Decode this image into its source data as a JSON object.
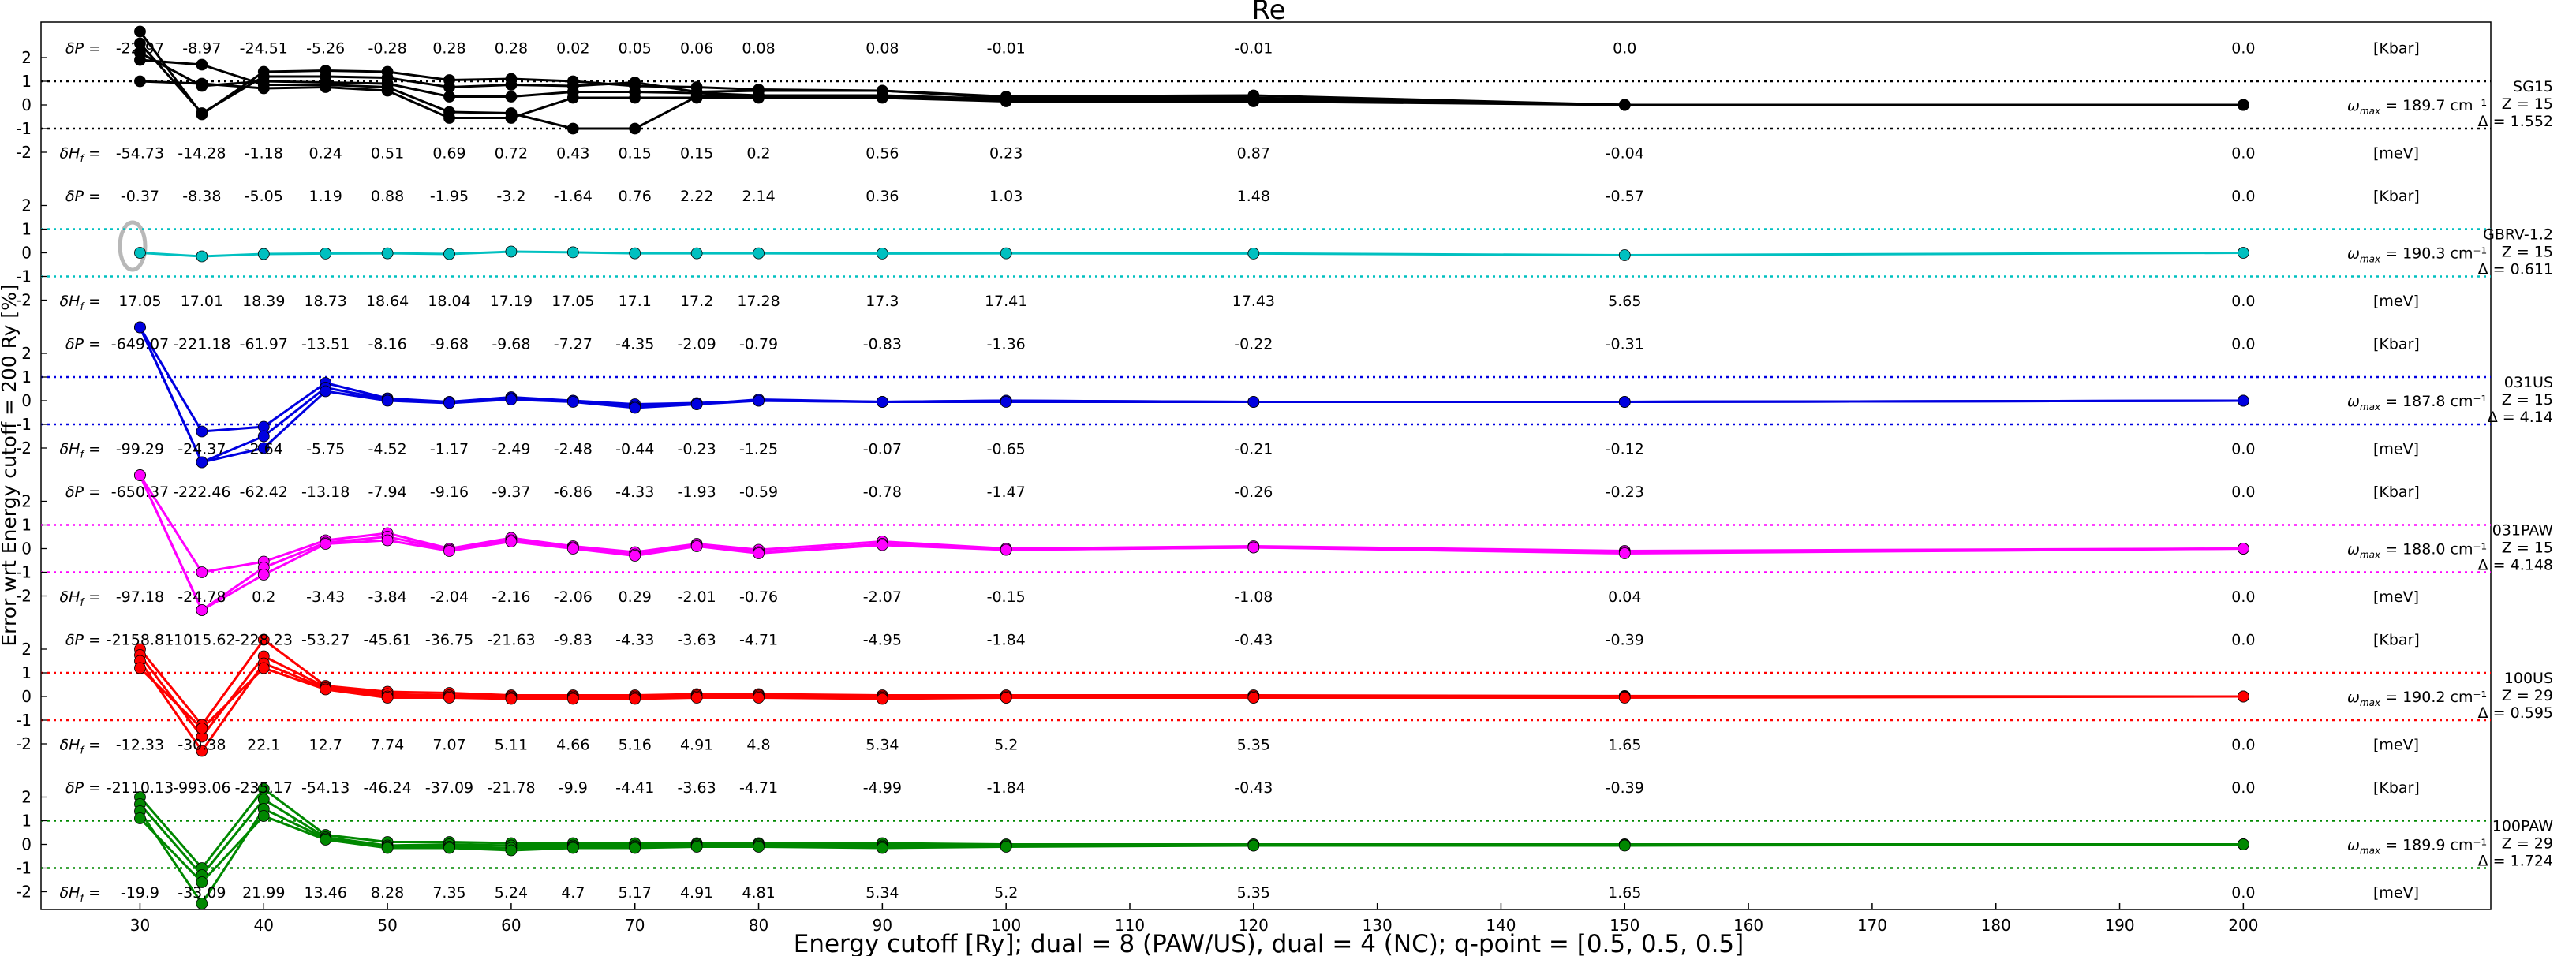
{
  "chart_data": {
    "type": "line",
    "title": "Re",
    "xlabel": "Energy cutoff [Ry]; dual = 8 (PAW/US), dual = 4 (NC); q-point = [0.5, 0.5, 0.5]",
    "ylabel": "Error wrt Energy cutoff = 200 Ry [%]",
    "xlim": [
      22,
      220
    ],
    "xticks": [
      30,
      40,
      50,
      60,
      70,
      80,
      90,
      100,
      110,
      120,
      130,
      140,
      150,
      160,
      170,
      180,
      190,
      200
    ],
    "x": [
      30,
      35,
      40,
      45,
      50,
      55,
      60,
      65,
      70,
      75,
      80,
      90,
      100,
      120,
      150,
      200
    ],
    "panel_ylim": [
      -2.6,
      3.1
    ],
    "panel_yticks": [
      2,
      1,
      0,
      -1,
      -2
    ],
    "labels": {
      "dP": "δP =",
      "dH": "δH",
      "dH_sub": "f",
      "dH_eq": " =",
      "kbar": "[Kbar]",
      "mev": "[meV]",
      "omega": "ω",
      "omega_sub": "max"
    },
    "panels": [
      {
        "name": "SG15",
        "z": "Z = 15",
        "delta": "Δ = 1.552",
        "color": "#000000",
        "omega_value": " = 189.7 cm⁻¹",
        "dP": [
          "-22.97",
          "-8.97",
          "-24.51",
          "-5.26",
          "-0.28",
          "0.28",
          "0.28",
          "0.02",
          "0.05",
          "0.06",
          "0.08",
          "0.08",
          "-0.01",
          "-0.01",
          "0.0",
          "0.0"
        ],
        "dH": [
          "-54.73",
          "-14.28",
          "-1.18",
          "0.24",
          "0.51",
          "0.69",
          "0.72",
          "0.43",
          "0.15",
          "0.15",
          "0.2",
          "0.56",
          "0.23",
          "0.87",
          "-0.04",
          "0.0"
        ],
        "series": [
          {
            "values": [
              3.4,
              -0.4,
              1.4,
              1.45,
              1.4,
              1.05,
              1.1,
              1.0,
              0.8,
              0.75,
              0.65,
              0.6,
              0.35,
              0.4,
              0.0,
              0.0
            ]
          },
          {
            "values": [
              2.6,
              -0.35,
              1.2,
              1.2,
              1.15,
              0.75,
              0.85,
              0.8,
              0.95,
              0.55,
              0.6,
              0.6,
              0.3,
              0.3,
              0.0,
              0.0
            ]
          },
          {
            "values": [
              2.2,
              0.8,
              1.0,
              0.95,
              0.9,
              0.35,
              0.35,
              0.55,
              0.55,
              0.5,
              0.4,
              0.4,
              0.25,
              0.25,
              0.0,
              0.0
            ]
          },
          {
            "values": [
              1.9,
              1.7,
              0.85,
              0.85,
              0.75,
              -0.3,
              -0.35,
              -1.0,
              -1.0,
              0.35,
              0.35,
              0.35,
              0.2,
              0.2,
              0.0,
              0.0
            ]
          },
          {
            "values": [
              1.0,
              0.9,
              0.7,
              0.75,
              0.6,
              -0.55,
              -0.55,
              0.3,
              0.3,
              0.3,
              0.3,
              0.3,
              0.15,
              0.15,
              0.0,
              0.0
            ]
          }
        ]
      },
      {
        "name": "GBRV-1.2",
        "z": "Z = 15",
        "delta": "Δ = 0.611",
        "color": "#00c0c0",
        "omega_value": " = 190.3 cm⁻¹",
        "dP": [
          "-0.37",
          "-8.38",
          "-5.05",
          "1.19",
          "0.88",
          "-1.95",
          "-3.2",
          "-1.64",
          "0.76",
          "2.22",
          "2.14",
          "0.36",
          "1.03",
          "1.48",
          "-0.57",
          "0.0"
        ],
        "dH": [
          "17.05",
          "17.01",
          "18.39",
          "18.73",
          "18.64",
          "18.04",
          "17.19",
          "17.05",
          "17.1",
          "17.2",
          "17.28",
          "17.3",
          "17.41",
          "17.43",
          "5.65",
          "0.0"
        ],
        "series": [
          {
            "values": [
              0.0,
              -0.15,
              -0.05,
              -0.03,
              -0.02,
              -0.05,
              0.05,
              0.02,
              -0.02,
              -0.02,
              -0.02,
              -0.03,
              -0.02,
              -0.03,
              -0.1,
              0.0
            ]
          }
        ]
      },
      {
        "name": "031US",
        "z": "Z = 15",
        "delta": "Δ = 4.14",
        "color": "#0000e0",
        "omega_value": " = 187.8 cm⁻¹",
        "dP": [
          "-649.07",
          "-221.18",
          "-61.97",
          "-13.51",
          "-8.16",
          "-9.68",
          "-9.68",
          "-7.27",
          "-4.35",
          "-2.09",
          "-0.79",
          "-0.83",
          "-1.36",
          "-0.22",
          "-0.31",
          "0.0"
        ],
        "dH": [
          "-99.29",
          "-24.37",
          "-2.64",
          "-5.75",
          "-4.52",
          "-1.17",
          "-2.49",
          "-2.48",
          "-0.44",
          "-0.23",
          "-1.25",
          "-0.07",
          "-0.65",
          "-0.21",
          "-0.12",
          "0.0"
        ],
        "series": [
          {
            "values": [
              10.5,
              -1.3,
              -1.1,
              0.75,
              0.1,
              -0.05,
              0.15,
              0.0,
              -0.15,
              -0.1,
              0.0,
              -0.05,
              0.0,
              -0.05,
              -0.05,
              0.0
            ]
          },
          {
            "values": [
              9.5,
              -2.7,
              -1.5,
              0.55,
              0.05,
              -0.05,
              0.1,
              0.0,
              -0.25,
              -0.15,
              0.05,
              -0.05,
              0.0,
              -0.05,
              -0.05,
              0.0
            ]
          },
          {
            "values": [
              8.5,
              -3.0,
              -2.0,
              0.4,
              0.0,
              -0.1,
              0.05,
              -0.05,
              -0.3,
              -0.15,
              0.0,
              -0.05,
              -0.05,
              -0.05,
              -0.05,
              0.0
            ]
          }
        ]
      },
      {
        "name": "031PAW",
        "z": "Z = 15",
        "delta": "Δ = 4.148",
        "color": "#ff00ff",
        "omega_value": " = 188.0 cm⁻¹",
        "dP": [
          "-650.37",
          "-222.46",
          "-62.42",
          "-13.18",
          "-7.94",
          "-9.16",
          "-9.37",
          "-6.86",
          "-4.33",
          "-1.93",
          "-0.59",
          "-0.78",
          "-1.47",
          "-0.26",
          "-0.23",
          "0.0"
        ],
        "dH": [
          "-97.18",
          "-24.78",
          "0.2",
          "-3.43",
          "-3.84",
          "-2.04",
          "-2.16",
          "-2.06",
          "0.29",
          "-2.01",
          "-0.76",
          "-2.07",
          "-0.15",
          "-1.08",
          "0.04",
          "0.0"
        ],
        "series": [
          {
            "values": [
              10.0,
              -1.0,
              -0.55,
              0.35,
              0.65,
              0.0,
              0.45,
              0.1,
              -0.15,
              0.2,
              -0.05,
              0.3,
              0.0,
              0.1,
              -0.1,
              0.0
            ]
          },
          {
            "values": [
              9.0,
              -3.7,
              -0.8,
              0.25,
              0.5,
              -0.05,
              0.35,
              0.05,
              -0.25,
              0.15,
              -0.15,
              0.2,
              -0.05,
              0.05,
              -0.15,
              0.0
            ]
          },
          {
            "values": [
              8.0,
              -4.0,
              -1.1,
              0.2,
              0.35,
              -0.1,
              0.3,
              0.0,
              -0.3,
              0.1,
              -0.2,
              0.15,
              -0.05,
              0.05,
              -0.2,
              0.0
            ]
          }
        ]
      },
      {
        "name": "100US",
        "z": "Z = 29",
        "delta": "Δ = 0.595",
        "color": "#ff0000",
        "omega_value": " = 190.2 cm⁻¹",
        "dP": [
          "-2158.81",
          "-1015.62",
          "-228.23",
          "-53.27",
          "-45.61",
          "-36.75",
          "-21.63",
          "-9.83",
          "-4.33",
          "-3.63",
          "-4.71",
          "-4.95",
          "-1.84",
          "-0.43",
          "-0.39",
          "0.0"
        ],
        "dH": [
          "-12.33",
          "-30.38",
          "22.1",
          "12.7",
          "7.74",
          "7.07",
          "5.11",
          "4.66",
          "5.16",
          "4.91",
          "4.8",
          "5.34",
          "5.2",
          "5.35",
          "1.65",
          "0.0"
        ],
        "series": [
          {
            "values": [
              2.0,
              -1.2,
              2.4,
              0.45,
              0.2,
              0.15,
              0.05,
              0.05,
              0.05,
              0.1,
              0.1,
              0.05,
              0.05,
              0.05,
              0.02,
              0.0
            ]
          },
          {
            "values": [
              1.75,
              -1.7,
              1.7,
              0.4,
              0.1,
              0.05,
              0.0,
              0.0,
              0.0,
              0.05,
              0.05,
              0.0,
              0.0,
              0.0,
              0.0,
              0.0
            ]
          },
          {
            "values": [
              1.5,
              -2.3,
              1.4,
              0.35,
              0.0,
              0.0,
              -0.05,
              -0.05,
              -0.05,
              0.0,
              0.0,
              -0.05,
              -0.05,
              -0.05,
              -0.02,
              0.0
            ]
          },
          {
            "values": [
              1.2,
              -1.35,
              1.2,
              0.3,
              -0.05,
              -0.05,
              -0.1,
              -0.1,
              -0.1,
              -0.05,
              -0.05,
              -0.1,
              -0.05,
              -0.05,
              -0.05,
              0.0
            ]
          }
        ]
      },
      {
        "name": "100PAW",
        "z": "Z = 29",
        "delta": "Δ = 1.724",
        "color": "#008800",
        "omega_value": " = 189.9 cm⁻¹",
        "dP": [
          "-2110.13",
          "-993.06",
          "-235.17",
          "-54.13",
          "-46.24",
          "-37.09",
          "-21.78",
          "-9.9",
          "-4.41",
          "-3.63",
          "-4.71",
          "-4.99",
          "-1.84",
          "-0.43",
          "-0.39",
          "0.0"
        ],
        "dH": [
          "-19.9",
          "-33.09",
          "21.99",
          "13.46",
          "8.28",
          "7.35",
          "5.24",
          "4.7",
          "5.17",
          "4.91",
          "4.81",
          "5.34",
          "5.2",
          "5.35",
          "1.65",
          "0.0"
        ],
        "series": [
          {
            "values": [
              2.0,
              -1.0,
              2.35,
              0.4,
              0.1,
              0.1,
              0.05,
              0.05,
              0.05,
              0.05,
              0.05,
              0.05,
              0.0,
              0.0,
              0.0,
              0.0
            ]
          },
          {
            "values": [
              1.7,
              -1.3,
              1.9,
              0.3,
              -0.05,
              0.0,
              -0.05,
              -0.05,
              -0.05,
              0.0,
              0.0,
              -0.05,
              -0.05,
              0.0,
              0.0,
              0.0
            ]
          },
          {
            "values": [
              1.4,
              -2.5,
              1.5,
              0.25,
              -0.1,
              -0.1,
              -0.15,
              -0.1,
              -0.1,
              -0.05,
              -0.05,
              -0.1,
              -0.05,
              -0.05,
              -0.02,
              0.0
            ]
          },
          {
            "values": [
              1.1,
              -1.6,
              1.2,
              0.2,
              -0.15,
              -0.15,
              -0.25,
              -0.15,
              -0.15,
              -0.1,
              -0.1,
              -0.15,
              -0.1,
              -0.05,
              -0.05,
              0.0
            ]
          }
        ]
      }
    ]
  }
}
